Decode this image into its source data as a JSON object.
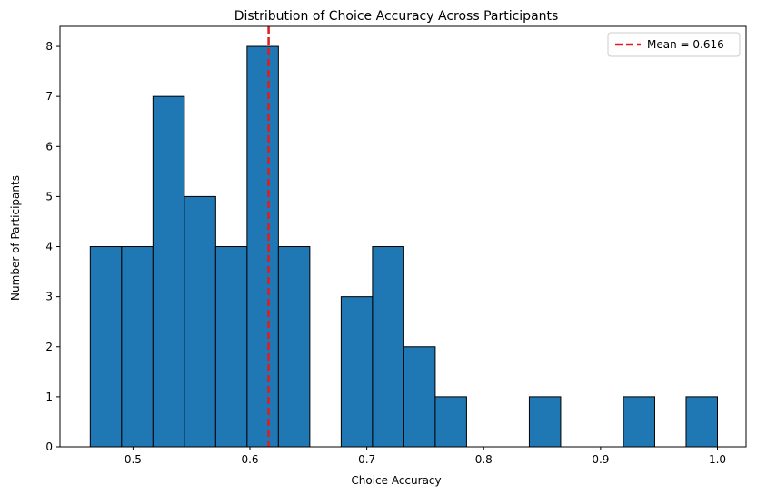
{
  "chart_data": {
    "type": "bar",
    "title": "Distribution of Choice Accuracy Across Participants",
    "xlabel": "Choice Accuracy",
    "ylabel": "Number of Participants",
    "xlim": [
      0.4375,
      1.0245
    ],
    "ylim": [
      0,
      8.4
    ],
    "xticks": [
      0.5,
      0.6,
      0.7,
      0.8,
      0.9,
      1.0
    ],
    "xtick_labels": [
      "0.5",
      "0.6",
      "0.7",
      "0.8",
      "0.9",
      "1.0"
    ],
    "yticks": [
      0,
      1,
      2,
      3,
      4,
      5,
      6,
      7,
      8
    ],
    "ytick_labels": [
      "0",
      "1",
      "2",
      "3",
      "4",
      "5",
      "6",
      "7",
      "8"
    ],
    "bin_start": 0.4634,
    "bin_width": 0.02683,
    "counts": [
      4,
      4,
      7,
      5,
      4,
      8,
      4,
      0,
      3,
      4,
      2,
      1,
      0,
      0,
      1,
      0,
      0,
      1,
      0,
      1
    ],
    "bar_color": "#1f77b4",
    "edge_color": "#000000",
    "mean_line": {
      "value": 0.616,
      "color": "#e41a1c",
      "label": "Mean = 0.616"
    },
    "legend_position": "top-right"
  }
}
